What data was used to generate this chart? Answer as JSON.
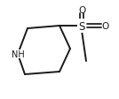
{
  "background_color": "#ffffff",
  "line_color": "#1a1a1a",
  "line_width": 1.4,
  "text_color": "#1a1a1a",
  "nh_label": "NH",
  "s_label": "S",
  "o1_label": "O",
  "o2_label": "O",
  "nh_fontsize": 7.0,
  "s_fontsize": 8.5,
  "o_fontsize": 7.5,
  "fig_width": 1.34,
  "fig_height": 1.13,
  "dpi": 100
}
